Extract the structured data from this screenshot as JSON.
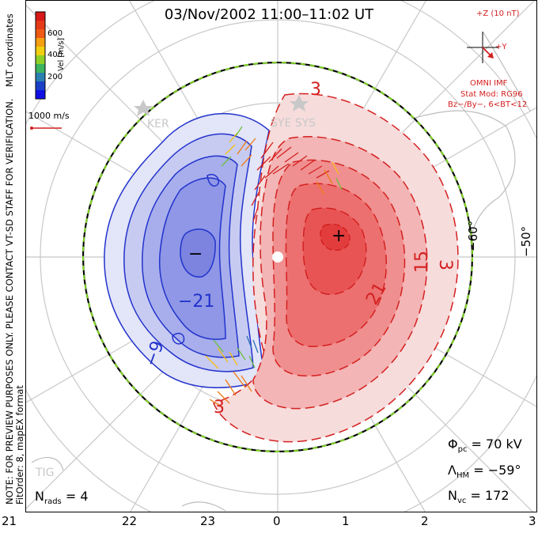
{
  "title": "03/Nov/2002 11:00–11:02 UT",
  "colorbar": {
    "label": "Vel [m/s]",
    "ticks": [
      "600",
      "400",
      "200"
    ],
    "colors": [
      "#d81818",
      "#ef5a14",
      "#f4a012",
      "#f0d010",
      "#8fd028",
      "#3cb460",
      "#2a7fb0",
      "#1a40c8",
      "#1010e6"
    ]
  },
  "coordinates_label": "MLT coordinates",
  "scale_vector": "1000 m/s",
  "note_line1": "NOTE: FOR PREVIEW PURPOSES ONLY. PLEASE CONTACT VT-SD STAFF FOR VERIFICATION.",
  "note_line2": "FitOrder: 8, mapEX format",
  "imf": {
    "bz_label": "+Z (10 nT)",
    "by_label": "+Y",
    "source": "OMNI IMF",
    "model": "Stat Mod: RG96",
    "condition": "Bz−/By−, 6<BT<12"
  },
  "stations": [
    "KER",
    "SYE SYS",
    "TIG"
  ],
  "latitude_labels": [
    "−60°",
    "−50°"
  ],
  "contours": {
    "negative_labels": [
      "−21",
      "−9",
      "−"
    ],
    "positive_labels": [
      "3",
      "+",
      "21",
      "15",
      "3",
      "3"
    ]
  },
  "stats": {
    "phi_sym": "Φ",
    "phi_sub": "pc",
    "phi_val": "= 70 kV",
    "lambda_sym": "Λ",
    "lambda_sub": "HM",
    "lambda_val": "= −59°",
    "nvc_sym": "N",
    "nvc_sub": "vc",
    "nvc_val": "= 172",
    "nrads_sym": "N",
    "nrads_sub": "rads",
    "nrads_val": "= 4"
  },
  "mlt_ticks": [
    "21",
    "22",
    "23",
    "0",
    "1",
    "2",
    "3"
  ]
}
